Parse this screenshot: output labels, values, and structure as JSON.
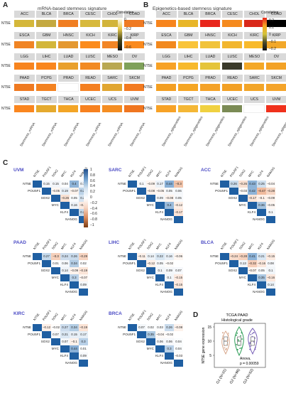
{
  "panels": {
    "A": "A",
    "B": "B",
    "C": "C",
    "D": "D"
  },
  "titleA": "mRNA-based stemness signature",
  "titleB": "Epigenetics-based stemness signature",
  "gene": "NT5E",
  "cancers": [
    "ACC",
    "BLCA",
    "BRCA",
    "CESC",
    "CHOL",
    "COAD",
    "ESCA",
    "GBM",
    "HNSC",
    "KICH",
    "KIRC",
    "KIRP",
    "LGG",
    "LIHC",
    "LUAD",
    "LUSC",
    "MESO",
    "OV",
    "PAAD",
    "PCPG",
    "PRAD",
    "READ",
    "SARC",
    "SKCM",
    "STAD",
    "TGCT",
    "THCA",
    "UCEC",
    "UCS",
    "UVM"
  ],
  "xlabA": "Stemness_mRNA",
  "xlabB": "Stemness_epigenetics",
  "colorsA": [
    "#d4b73a",
    "#c4a940",
    "#f07e22",
    "#d7b93c",
    "#d2b43a",
    "#ef7a22",
    "#f08424",
    "#d3b63a",
    "#e49830",
    "#fb8b1c",
    "#f28525",
    "#fa8a1e",
    "#f7841f",
    "#f9861d",
    "#e9a02c",
    "#f28a23",
    "#b9a852",
    "#7fa15a",
    "#ef7a21",
    "#f38220",
    "#ffffff",
    "#f47f20",
    "#e1a631",
    "#f27a20",
    "#fa861f",
    "#e5aa2e",
    "#f3a526",
    "#f7811f",
    "#f48d22",
    "#f07620"
  ],
  "colorsB": [
    "#f7851d",
    "#e8b628",
    "#e8261c",
    "#f58a1e",
    "#d9281a",
    "#000000",
    "#f2891e",
    "#f9c43a",
    "#f1c33a",
    "#f2b62e",
    "#f8ba2b",
    "#f2a82a",
    "#f7a226",
    "#f7b92c",
    "#e5c43a",
    "#3a3a2a",
    "#f4a827",
    "#f3a226",
    "#f39f22",
    "#f5a623",
    "#f4a227",
    "#f2a024",
    "#f2a528",
    "#f4a42a",
    "#f7a226",
    "#f4b736",
    "#f0d140",
    "#7b8b55",
    "#fefefe",
    "#f0311c"
  ],
  "cbA": {
    "title": "Correlation",
    "ticks": [
      "0",
      "−0.2",
      "−0.4",
      "−0.6"
    ]
  },
  "cbB": {
    "title": "Correlation",
    "ticks": [
      "0.2",
      "0.1",
      "0",
      "−0.1",
      "−0.2"
    ]
  },
  "cbC": {
    "ticks": [
      "1",
      "0.8",
      "0.6",
      "0.4",
      "0.2",
      "0",
      "−0.2",
      "−0.4",
      "−0.6",
      "−0.8",
      "−1"
    ]
  },
  "genes": [
    "NT5E",
    "POU5F1",
    "SOX2",
    "MYC",
    "KLF4",
    "NANOG"
  ],
  "corr": [
    {
      "name": "UVM",
      "v": [
        [
          "0.15",
          "0.15",
          "0.04",
          "0.4",
          "0.16"
        ],
        [
          "−0.05",
          "0.19",
          "−0.07",
          "0.29"
        ],
        [
          "−0.26",
          "0.05",
          "0.22"
        ],
        [
          "0.16",
          "−0.16"
        ],
        [
          "0.28"
        ]
      ]
    },
    {
      "name": "SARC",
      "v": [
        [
          "0.1",
          "−0.09",
          "0.17",
          "0.44",
          "−0.3"
        ],
        [
          "−0.08",
          "−0.05",
          "0.05",
          "0.06"
        ],
        [
          "0.09",
          "−0.08",
          "0.05"
        ],
        [
          "0.4",
          "−0.12"
        ],
        [
          "−0.17"
        ]
      ]
    },
    {
      "name": "ACC",
      "v": [
        [
          "0.26",
          "−0.26",
          "0.43",
          "0.25",
          "−0.04"
        ],
        [
          "−0.03",
          "0.42",
          "−0.47",
          "−0.28"
        ],
        [
          "−0.17",
          "−0.1",
          "−0.09"
        ],
        [
          "0.36",
          "−0.05"
        ],
        [
          "0.1"
        ]
      ]
    },
    {
      "name": "PAAD",
      "v": [
        [
          "0.27",
          "−0.3",
          "0.24",
          "0.26",
          "−0.29"
        ],
        [
          "0.01",
          "0.06",
          "0.34",
          "0.02"
        ],
        [
          "0.14",
          "−0.09",
          "−0.19"
        ],
        [
          "0.3",
          "−0.07"
        ],
        [
          "0.09"
        ]
      ]
    },
    {
      "name": "LIHC",
      "v": [
        [
          "−0.11",
          "0.14",
          "0.22",
          "0.16",
          "−0.06"
        ],
        [
          "−0.12",
          "0.05",
          "−0.02"
        ],
        [
          "0.1",
          "0.09",
          "0.07"
        ],
        [
          "0.1",
          "−0.15"
        ],
        [
          "−0.15"
        ]
      ]
    },
    {
      "name": "BLCA",
      "v": [
        [
          "−0.24",
          "−0.28",
          "0.41",
          "0.21",
          "−0.15"
        ],
        [
          "0.13",
          "−0.32",
          "−0.16",
          "0.08"
        ],
        [
          "−0.07",
          "0.05",
          "0.1"
        ],
        [
          "0.35",
          "−0.16"
        ],
        [
          "0.14"
        ]
      ]
    },
    {
      "name": "KIRC",
      "v": [
        [
          "−0.12",
          "−0.02",
          "0.27",
          "0.34",
          "−0.19"
        ],
        [
          "0.07",
          "0.21",
          "0.15",
          "0.17"
        ],
        [
          "0.07",
          "−0.1",
          "0.3"
        ],
        [
          "0.44",
          "0.01"
        ],
        [
          "0.09"
        ]
      ]
    },
    {
      "name": "BRCA",
      "v": [
        [
          "0.07",
          "0.02",
          "0.03",
          "0.26",
          "−0.08"
        ],
        [
          "0.35",
          "−0.04",
          "−0.02"
        ],
        [
          "0.06",
          "0.06",
          "0.04"
        ],
        [
          "0.3",
          "0.04"
        ],
        [
          "−0.03"
        ]
      ]
    }
  ],
  "corrColors": [
    [
      [
        "#f3f6fa",
        "#f3f6fa",
        "#fbfcfd",
        "#8fb4d8",
        "#eef3f8"
      ],
      [
        "#fef6f1",
        "#e9f0f7",
        "#fdf4ee",
        "#bcd3e8"
      ],
      [
        "#f9e0d1",
        "#fafcfd",
        "#d6e4f1"
      ],
      [
        "#eef3f8",
        "#fbe9df"
      ],
      [
        "#c4d8ea"
      ]
    ],
    [
      [
        "#f6f8fb",
        "#fdf5f0",
        "#ecf2f8",
        "#88afd6",
        "#f0c2a8"
      ],
      [
        "#fdf3ed",
        "#fef7f3",
        "#f7f9fb",
        "#f5f8fb"
      ],
      [
        "#f4f7fa",
        "#fdf3ed",
        "#f7f9fb"
      ],
      [
        "#9abbdb",
        "#fdeee5"
      ],
      [
        "#fbe4d7"
      ]
    ],
    [
      [
        "#c9dbec",
        "#f8dfd0",
        "#8db3d8",
        "#cfdfee",
        "#fef9f6"
      ],
      [
        "#fefaf7",
        "#8fb4d8",
        "#f0bb9e",
        "#f6d6c4"
      ],
      [
        "#fbe5d8",
        "#fdf1ea",
        "#fdf3ed"
      ],
      [
        "#a5c3df",
        "#fef7f3"
      ],
      [
        "#f4f7fa"
      ]
    ],
    [
      [
        "#c5d9eb",
        "#f6d0bb",
        "#cddcec",
        "#c9dbec",
        "#f6d3c0"
      ],
      [
        "#fdfeff",
        "#f5f8fb",
        "#b2cce4",
        "#fcfdfe"
      ],
      [
        "#eef3f8",
        "#fdf3ed",
        "#fbe5d8"
      ],
      [
        "#b8d0e7",
        "#fef5f0"
      ],
      [
        "#f4f7fa"
      ]
    ],
    [
      [
        "#fdf1ea",
        "#edf3f8",
        "#d8e6f2",
        "#e9f0f7",
        "#fef6f1"
      ],
      [
        "#fdf0e8",
        "#f7f9fb",
        "#fefbf9"
      ],
      [
        "#f1f5f9",
        "#f4f7fa",
        "#f6f8fb"
      ],
      [
        "#f1f5f9",
        "#fce9df"
      ],
      [
        "#fce9df"
      ]
    ],
    [
      [
        "#f8dccc",
        "#f6d2be",
        "#8db3d8",
        "#dae7f3",
        "#fcebe1"
      ],
      [
        "#f0f5f9",
        "#f5cdb8",
        "#fbe7dc",
        "#f6f8fb"
      ],
      [
        "#fef5f0",
        "#f9fbfd",
        "#f1f5f9"
      ],
      [
        "#abc7e1",
        "#fbe7dc"
      ],
      [
        "#ecf2f8"
      ]
    ],
    [
      [
        "#fdefe7",
        "#fefcfb",
        "#ccdced",
        "#b3cde4",
        "#fbe3d5"
      ],
      [
        "#f4f7fa",
        "#dae7f3",
        "#e8eff7",
        "#e5eef6"
      ],
      [
        "#f4f7fa",
        "#fdf1ea",
        "#b8d0e7"
      ],
      [
        "#88afd6",
        "#fdfeff"
      ],
      [
        "#f6f8fb"
      ]
    ],
    [
      [
        "#f4f7fa",
        "#fcfdfe",
        "#fbfcfd",
        "#c9dbec",
        "#fdf2ec"
      ],
      [
        "#aecae2",
        "#fef9f6",
        "#fefcfb"
      ],
      [
        "#f6f8fb",
        "#f6f8fb",
        "#fafcfd"
      ],
      [
        "#b8d0e7",
        "#fafcfd"
      ],
      [
        "#fefcfb"
      ]
    ]
  ],
  "violin": {
    "title": "TCGA PAAD\nHistological grade",
    "ylabel": "NT5E gene expression",
    "yticks": [
      "15",
      "10",
      "5"
    ],
    "groups": [
      "G1 (N=31)",
      "G2 (N=96)",
      "G3 (N=52)"
    ],
    "colors": [
      "#d8a88d",
      "#2f9e58",
      "#7a62b8"
    ],
    "stat1": "Anova,",
    "stat2": "p = 0.00059"
  }
}
